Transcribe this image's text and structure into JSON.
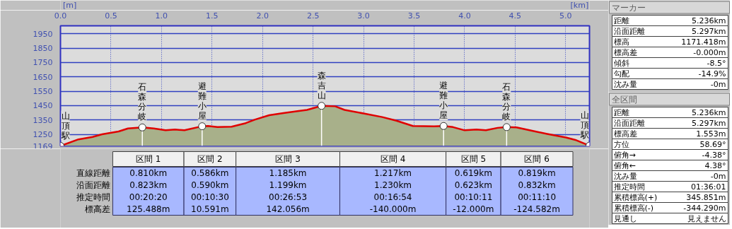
{
  "chart_data": [
    {
      "type": "area",
      "xlabel": "[km]",
      "ylabel": "[m]",
      "xlim": [
        0,
        5.236
      ],
      "ylim": [
        1169,
        2005
      ],
      "xticks": [
        {
          "value": 0,
          "label": "0.0"
        },
        {
          "value": 0.5,
          "label": "0.5"
        },
        {
          "value": 1,
          "label": "1.0"
        },
        {
          "value": 1.5,
          "label": "1.5"
        },
        {
          "value": 2,
          "label": "2.0"
        },
        {
          "value": 2.5,
          "label": "2.5"
        },
        {
          "value": 3,
          "label": "3.0"
        },
        {
          "value": 3.5,
          "label": "3.5"
        },
        {
          "value": 4,
          "label": "4.0"
        },
        {
          "value": 4.5,
          "label": "4.5"
        },
        {
          "value": 5,
          "label": "5.0"
        }
      ],
      "yticks": [
        1169,
        1250,
        1350,
        1450,
        1550,
        1650,
        1750,
        1850,
        1950
      ],
      "grid": true,
      "series": [
        {
          "type": "area",
          "color": "#e00000",
          "x": [
            0,
            0.178,
            0.318,
            0.412,
            0.575,
            0.668,
            0.81,
            0.924,
            1.04,
            1.134,
            1.227,
            1.402,
            1.46,
            1.554,
            1.694,
            1.834,
            1.927,
            2.066,
            2.206,
            2.346,
            2.44,
            2.584,
            2.719,
            2.812,
            3.0,
            3.185,
            3.325,
            3.488,
            3.698,
            3.792,
            3.885,
            4.0,
            4.117,
            4.211,
            4.327,
            4.416,
            4.514,
            4.7,
            4.817,
            5.003,
            5.096,
            5.236
          ],
          "values": [
            1169,
            1215,
            1232,
            1250,
            1270,
            1291,
            1298,
            1291,
            1278,
            1283,
            1278,
            1306,
            1308,
            1300,
            1303,
            1328,
            1353,
            1383,
            1398,
            1411,
            1420,
            1448,
            1445,
            1420,
            1395,
            1370,
            1345,
            1308,
            1305,
            1308,
            1300,
            1278,
            1283,
            1278,
            1295,
            1300,
            1298,
            1270,
            1253,
            1228,
            1211,
            1171
          ]
        },
        {
          "type": "lollipop",
          "color": "#ffffff",
          "marker": "circle",
          "x": [
            0,
            0.81,
            1.402,
            2.584,
            3.792,
            4.416,
            5.236
          ],
          "values": [
            1169,
            1298,
            1306,
            1448,
            1308,
            1300,
            1171
          ]
        }
      ],
      "annotations": [
        {
          "text": "山頂駅",
          "x": 0,
          "y": 1169
        },
        {
          "text": "石森分岐",
          "x": 0.81,
          "y": 1298
        },
        {
          "text": "避難小屋",
          "x": 1.402,
          "y": 1306
        },
        {
          "text": "森吉山",
          "x": 2.584,
          "y": 1448
        },
        {
          "text": "避難小屋",
          "x": 3.792,
          "y": 1308
        },
        {
          "text": "石森分岐",
          "x": 4.416,
          "y": 1300
        },
        {
          "text": "山頂駅",
          "x": 5.236,
          "y": 1171
        },
        "区間 1",
        "区間 2",
        "区間 3",
        "区間 4",
        "区間 5",
        "区間 6",
        "直線距離",
        "0.810km",
        "0.586km",
        "1.185km",
        "1.217km",
        "0.619km",
        "0.819km",
        "沿面距離",
        "0.823km",
        "0.590km",
        "1.199km",
        "1.230km",
        "0.623km",
        "0.832km",
        "推定時間",
        "00:20:20",
        "00:10:30",
        "00:26:53",
        "00:16:54",
        "00:10:11",
        "00:11:10",
        "標高差",
        "125.488m",
        "10.591m",
        "142.056m",
        "-140.000m",
        "-12.000m",
        "-124.582m"
      ]
    },
    {
      "type": "other",
      "title": "マーカー",
      "annotations": [
        "距離",
        "5.236km",
        "沿面距離",
        "5.297km",
        "標高",
        "1171.418m",
        "標高差",
        "-0.000m",
        "傾斜",
        "-8.5°",
        "勾配",
        "-14.9%",
        "沈み量",
        "-0m"
      ]
    },
    {
      "type": "other",
      "title": "全区間",
      "annotations": [
        "距離",
        "5.236km",
        "沿面距離",
        "5.297km",
        "標高差",
        "1.553m",
        "方位",
        "58.69°",
        "俯角→",
        "-4.38°",
        "俯角←",
        "4.38°",
        "沈み量",
        "-0m",
        "推定時間",
        "01:36:01",
        "累積標高(+)",
        "345.851m",
        "累積標高(-)",
        "-344.290m",
        "見通し",
        "見えません"
      ]
    }
  ]
}
